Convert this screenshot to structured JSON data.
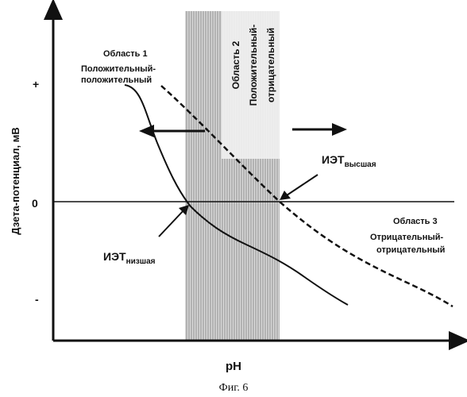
{
  "axes": {
    "y_label": "Дзета-потенциал, мВ",
    "x_label": "pH",
    "y_plus": "+",
    "y_zero": "0",
    "y_minus": "-"
  },
  "regions": {
    "region1": {
      "title": "Область 1",
      "line1": "Положительный-",
      "line2": "положительный"
    },
    "region2": {
      "title": "Область 2",
      "line1": "Положительный-",
      "line2": "отрицательный"
    },
    "region3": {
      "title": "Область 3",
      "line1": "Отрицательный-",
      "line2": "отрицательный"
    }
  },
  "iep": {
    "high_main": "ИЭТ",
    "high_sub": "высшая",
    "low_main": "ИЭТ",
    "low_sub": "низшая"
  },
  "caption": "Фиг. 6"
}
